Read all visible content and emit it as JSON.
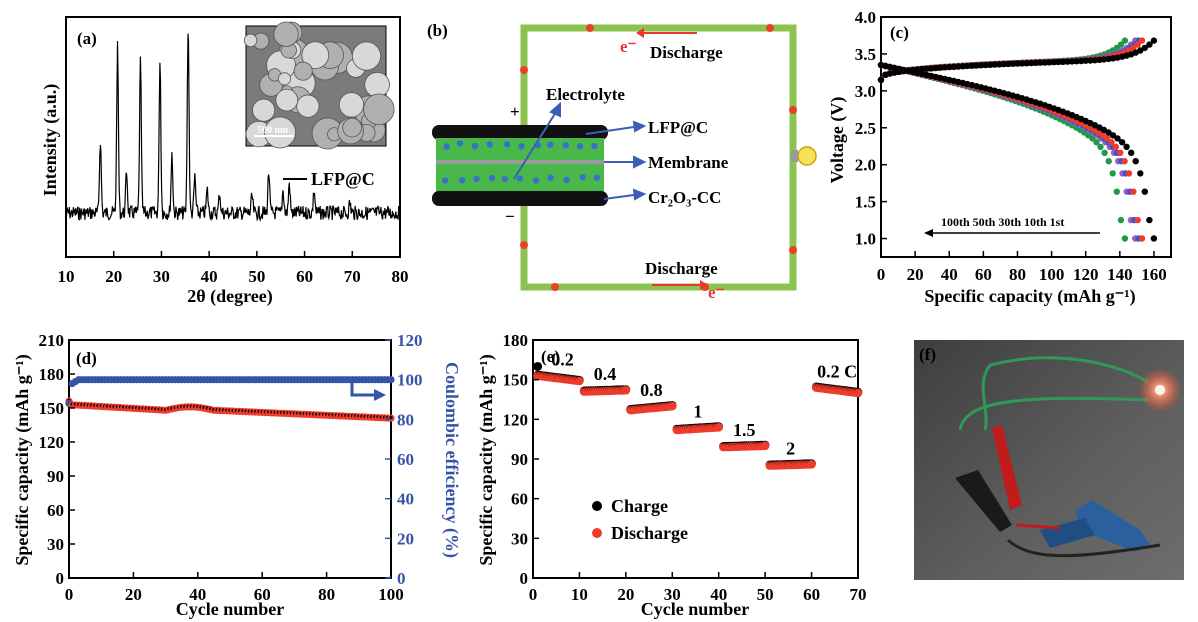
{
  "chart_data": [
    {
      "panel": "(a)",
      "type": "line",
      "xlabel": "2θ (degree)",
      "ylabel": "Intensity (a.u.)",
      "xlim": [
        10,
        80
      ],
      "xticks": [
        "10",
        "20",
        "30",
        "40",
        "50",
        "60",
        "70",
        "80"
      ],
      "legend": "LFP@C",
      "inset_scale": "500 nm",
      "peaks": [
        {
          "x": 17.2,
          "h": 0.45
        },
        {
          "x": 20.8,
          "h": 1.0
        },
        {
          "x": 22.7,
          "h": 0.25
        },
        {
          "x": 25.6,
          "h": 0.92
        },
        {
          "x": 29.7,
          "h": 0.93
        },
        {
          "x": 32.2,
          "h": 0.36
        },
        {
          "x": 35.6,
          "h": 1.15
        },
        {
          "x": 37.0,
          "h": 0.22
        },
        {
          "x": 39.6,
          "h": 0.14
        },
        {
          "x": 42.2,
          "h": 0.12
        },
        {
          "x": 49.0,
          "h": 0.1
        },
        {
          "x": 52.5,
          "h": 0.25
        },
        {
          "x": 55.5,
          "h": 0.14
        },
        {
          "x": 56.8,
          "h": 0.18
        },
        {
          "x": 62.0,
          "h": 0.14
        },
        {
          "x": 69.5,
          "h": 0.06
        }
      ]
    },
    {
      "panel": "(b)",
      "type": "diagram",
      "labels": {
        "top_discharge": "Discharge",
        "bottom_discharge": "Discharge",
        "electrolyte": "Electrolyte",
        "lfp": "LFP@C",
        "membrane": "Membrane",
        "cc": "Cr₂O₃-CC",
        "plus": "+",
        "minus": "−",
        "electron": "e⁻"
      }
    },
    {
      "panel": "(c)",
      "type": "line",
      "xlabel": "Specific capacity (mAh g⁻¹)",
      "ylabel": "Voltage (V)",
      "xlim": [
        0,
        170
      ],
      "ylim": [
        0.75,
        4.0
      ],
      "xticks": [
        "0",
        "20",
        "40",
        "60",
        "80",
        "100",
        "120",
        "140",
        "160"
      ],
      "yticks": [
        "1.0",
        "1.5",
        "2.0",
        "2.5",
        "3.0",
        "3.5",
        "4.0"
      ],
      "annotation": "100th 50th 30th 10th 1st",
      "series": [
        {
          "name": "1st",
          "color": "#000000",
          "capacity": 160
        },
        {
          "name": "10th",
          "color": "#ef3b2c",
          "capacity": 153
        },
        {
          "name": "30th",
          "color": "#3a55c8",
          "capacity": 151
        },
        {
          "name": "50th",
          "color": "#9b5fc0",
          "capacity": 149
        },
        {
          "name": "100th",
          "color": "#1e9a4a",
          "capacity": 143
        }
      ]
    },
    {
      "panel": "(d)",
      "type": "scatter",
      "xlabel": "Cycle number",
      "ylabel": "Specific capacity (mAh g⁻¹)",
      "ylabel2": "Coulombic efficiency (%)",
      "xlim": [
        0,
        100
      ],
      "ylim": [
        0,
        210
      ],
      "ylim2": [
        0,
        120
      ],
      "xticks": [
        "0",
        "20",
        "40",
        "60",
        "80",
        "100"
      ],
      "yticks": [
        "0",
        "30",
        "60",
        "90",
        "120",
        "150",
        "180",
        "210"
      ],
      "yticks2": [
        "0",
        "20",
        "40",
        "60",
        "80",
        "100",
        "120"
      ],
      "capacity_start": 156,
      "capacity_mid": 148,
      "capacity_bump": 151,
      "capacity_end": 141,
      "efficiency_start": 88,
      "efficiency": 100
    },
    {
      "panel": "(e)",
      "type": "scatter",
      "xlabel": "Cycle number",
      "ylabel": "Specific capacity (mAh g⁻¹)",
      "xlim": [
        0,
        70
      ],
      "ylim": [
        0,
        180
      ],
      "xticks": [
        "0",
        "10",
        "20",
        "30",
        "40",
        "50",
        "60",
        "70"
      ],
      "yticks": [
        "0",
        "30",
        "60",
        "90",
        "120",
        "150",
        "180"
      ],
      "rate_labels": [
        "0.2",
        "0.4",
        "0.8",
        "1",
        "1.5",
        "2",
        "0.2 C"
      ],
      "steps": [
        {
          "from": 1,
          "to": 10,
          "start": 153,
          "end": 149
        },
        {
          "from": 11,
          "to": 20,
          "start": 141,
          "end": 142
        },
        {
          "from": 21,
          "to": 30,
          "start": 127,
          "end": 130
        },
        {
          "from": 31,
          "to": 40,
          "start": 112,
          "end": 114
        },
        {
          "from": 41,
          "to": 50,
          "start": 99,
          "end": 100
        },
        {
          "from": 51,
          "to": 60,
          "start": 85,
          "end": 86
        },
        {
          "from": 61,
          "to": 70,
          "start": 144,
          "end": 140
        }
      ],
      "charge_first": 160,
      "legend": [
        "Charge",
        "Discharge"
      ]
    },
    {
      "panel": "(f)",
      "type": "photo"
    }
  ]
}
